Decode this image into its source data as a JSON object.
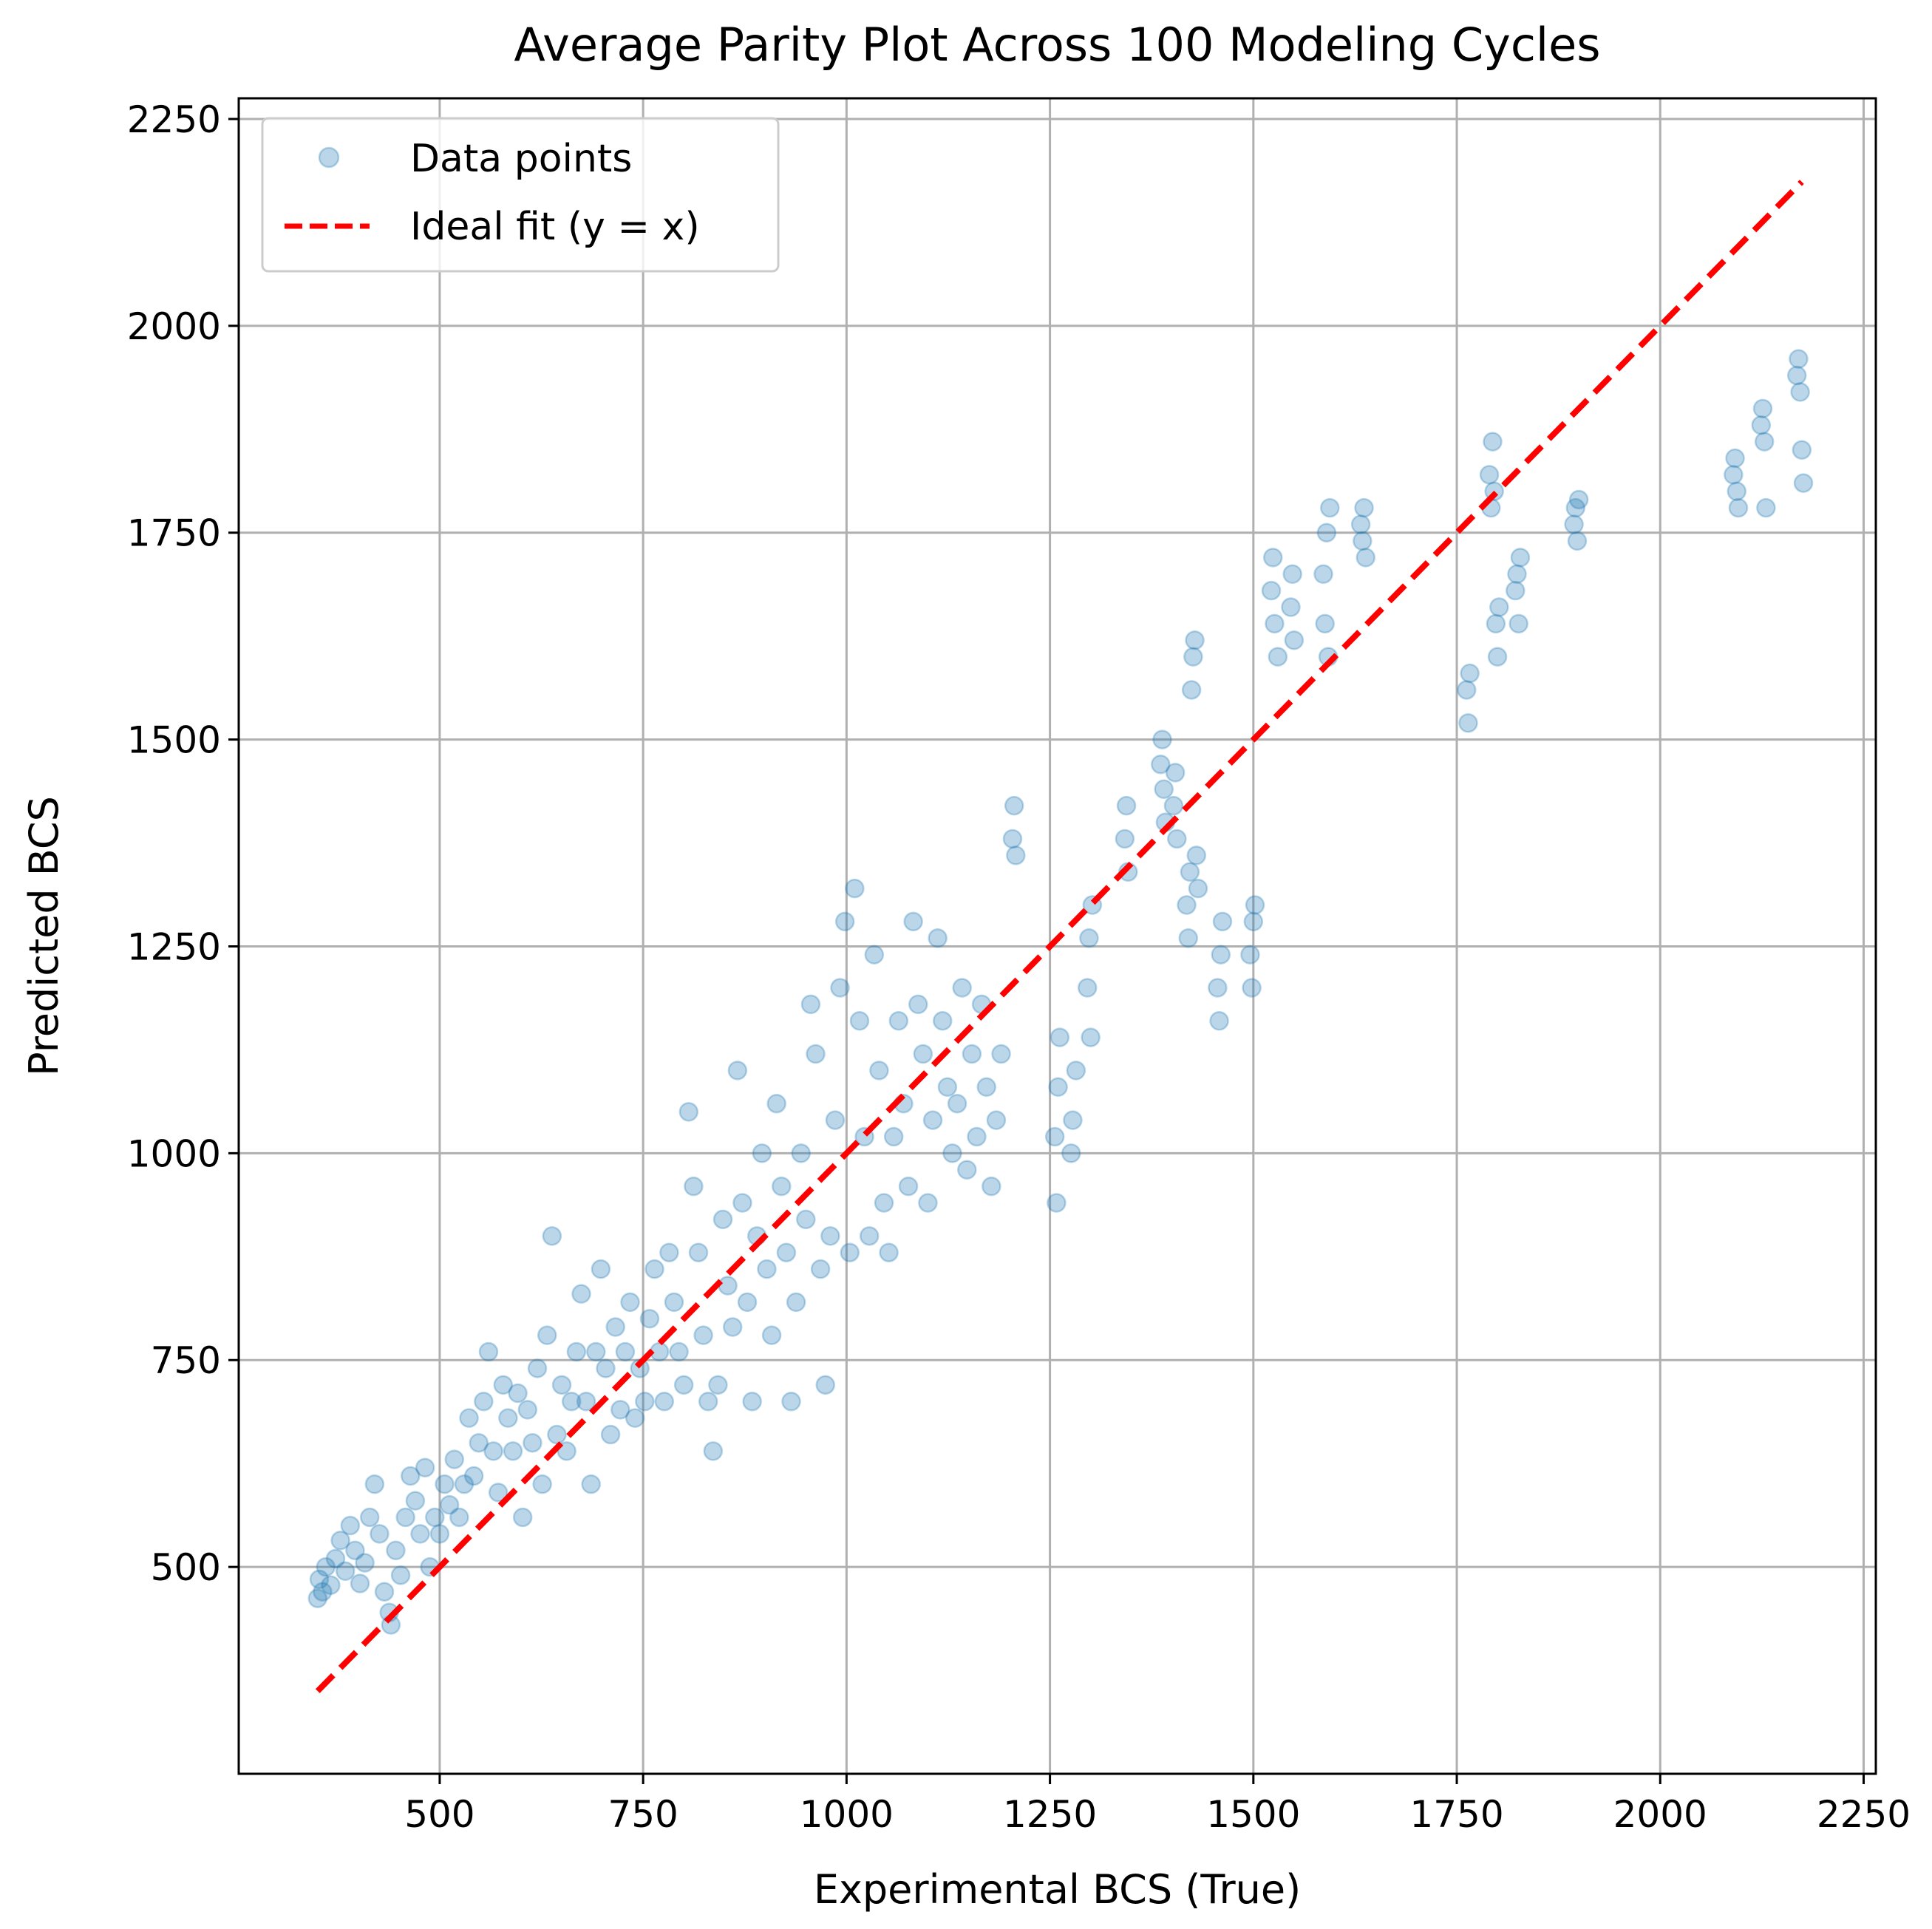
{
  "chart_data": {
    "type": "scatter",
    "title": "Average Parity Plot Across 100 Modeling Cycles",
    "xlabel": "Experimental BCS (True)",
    "ylabel": "Predicted BCS",
    "xlim": [
      253,
      2265
    ],
    "ylim": [
      250,
      2275
    ],
    "xticks": [
      500,
      750,
      1000,
      1250,
      1500,
      1750,
      2000,
      2250
    ],
    "yticks": [
      500,
      750,
      1000,
      1250,
      1500,
      1750,
      2000,
      2250
    ],
    "grid": true,
    "legend_position": "top-left",
    "series": [
      {
        "name": "Data points",
        "kind": "scatter",
        "color": "#1f77b4",
        "alpha": 0.3,
        "points": [
          [
            350,
            462
          ],
          [
            352,
            485
          ],
          [
            356,
            470
          ],
          [
            360,
            500
          ],
          [
            366,
            478
          ],
          [
            372,
            510
          ],
          [
            378,
            532
          ],
          [
            384,
            495
          ],
          [
            390,
            550
          ],
          [
            396,
            520
          ],
          [
            402,
            480
          ],
          [
            408,
            505
          ],
          [
            414,
            560
          ],
          [
            420,
            600
          ],
          [
            426,
            540
          ],
          [
            432,
            470
          ],
          [
            438,
            445
          ],
          [
            440,
            430
          ],
          [
            446,
            520
          ],
          [
            452,
            490
          ],
          [
            458,
            560
          ],
          [
            464,
            610
          ],
          [
            470,
            580
          ],
          [
            476,
            540
          ],
          [
            482,
            620
          ],
          [
            488,
            500
          ],
          [
            494,
            560
          ],
          [
            500,
            540
          ],
          [
            506,
            600
          ],
          [
            512,
            575
          ],
          [
            518,
            630
          ],
          [
            524,
            560
          ],
          [
            530,
            600
          ],
          [
            536,
            680
          ],
          [
            542,
            610
          ],
          [
            548,
            650
          ],
          [
            554,
            700
          ],
          [
            560,
            760
          ],
          [
            566,
            640
          ],
          [
            572,
            590
          ],
          [
            578,
            720
          ],
          [
            584,
            680
          ],
          [
            590,
            640
          ],
          [
            596,
            710
          ],
          [
            602,
            560
          ],
          [
            608,
            690
          ],
          [
            614,
            650
          ],
          [
            620,
            740
          ],
          [
            626,
            600
          ],
          [
            632,
            780
          ],
          [
            638,
            900
          ],
          [
            644,
            660
          ],
          [
            650,
            720
          ],
          [
            656,
            640
          ],
          [
            662,
            700
          ],
          [
            668,
            760
          ],
          [
            674,
            830
          ],
          [
            680,
            700
          ],
          [
            686,
            600
          ],
          [
            692,
            760
          ],
          [
            698,
            860
          ],
          [
            704,
            740
          ],
          [
            710,
            660
          ],
          [
            716,
            790
          ],
          [
            722,
            690
          ],
          [
            728,
            760
          ],
          [
            734,
            820
          ],
          [
            740,
            680
          ],
          [
            746,
            740
          ],
          [
            752,
            700
          ],
          [
            758,
            800
          ],
          [
            764,
            860
          ],
          [
            770,
            760
          ],
          [
            776,
            700
          ],
          [
            782,
            880
          ],
          [
            788,
            820
          ],
          [
            794,
            760
          ],
          [
            800,
            720
          ],
          [
            806,
            1050
          ],
          [
            812,
            960
          ],
          [
            818,
            880
          ],
          [
            824,
            780
          ],
          [
            830,
            700
          ],
          [
            836,
            640
          ],
          [
            842,
            720
          ],
          [
            848,
            920
          ],
          [
            854,
            840
          ],
          [
            860,
            790
          ],
          [
            866,
            1100
          ],
          [
            872,
            940
          ],
          [
            878,
            820
          ],
          [
            884,
            700
          ],
          [
            890,
            900
          ],
          [
            896,
            1000
          ],
          [
            902,
            860
          ],
          [
            908,
            780
          ],
          [
            914,
            1060
          ],
          [
            920,
            960
          ],
          [
            926,
            880
          ],
          [
            932,
            700
          ],
          [
            938,
            820
          ],
          [
            944,
            1000
          ],
          [
            950,
            920
          ],
          [
            956,
            1180
          ],
          [
            962,
            1120
          ],
          [
            968,
            860
          ],
          [
            974,
            720
          ],
          [
            980,
            900
          ],
          [
            986,
            1040
          ],
          [
            992,
            1200
          ],
          [
            998,
            1280
          ],
          [
            1004,
            880
          ],
          [
            1010,
            1320
          ],
          [
            1016,
            1160
          ],
          [
            1022,
            1020
          ],
          [
            1028,
            900
          ],
          [
            1034,
            1240
          ],
          [
            1040,
            1100
          ],
          [
            1046,
            940
          ],
          [
            1052,
            880
          ],
          [
            1058,
            1020
          ],
          [
            1064,
            1160
          ],
          [
            1070,
            1060
          ],
          [
            1076,
            960
          ],
          [
            1082,
            1280
          ],
          [
            1088,
            1180
          ],
          [
            1094,
            1120
          ],
          [
            1100,
            940
          ],
          [
            1106,
            1040
          ],
          [
            1112,
            1260
          ],
          [
            1118,
            1160
          ],
          [
            1124,
            1080
          ],
          [
            1130,
            1000
          ],
          [
            1136,
            1060
          ],
          [
            1142,
            1200
          ],
          [
            1148,
            980
          ],
          [
            1154,
            1120
          ],
          [
            1160,
            1020
          ],
          [
            1166,
            1180
          ],
          [
            1172,
            1080
          ],
          [
            1178,
            960
          ],
          [
            1184,
            1040
          ],
          [
            1190,
            1120
          ],
          [
            1204,
            1380
          ],
          [
            1206,
            1420
          ],
          [
            1208,
            1360
          ],
          [
            1256,
            1020
          ],
          [
            1258,
            940
          ],
          [
            1260,
            1080
          ],
          [
            1262,
            1140
          ],
          [
            1276,
            1000
          ],
          [
            1278,
            1040
          ],
          [
            1282,
            1100
          ],
          [
            1296,
            1200
          ],
          [
            1298,
            1260
          ],
          [
            1300,
            1140
          ],
          [
            1302,
            1300
          ],
          [
            1342,
            1380
          ],
          [
            1344,
            1420
          ],
          [
            1346,
            1340
          ],
          [
            1386,
            1470
          ],
          [
            1388,
            1500
          ],
          [
            1390,
            1440
          ],
          [
            1392,
            1400
          ],
          [
            1402,
            1420
          ],
          [
            1404,
            1460
          ],
          [
            1406,
            1380
          ],
          [
            1418,
            1300
          ],
          [
            1420,
            1260
          ],
          [
            1422,
            1340
          ],
          [
            1424,
            1560
          ],
          [
            1426,
            1600
          ],
          [
            1428,
            1620
          ],
          [
            1430,
            1360
          ],
          [
            1432,
            1320
          ],
          [
            1456,
            1200
          ],
          [
            1458,
            1160
          ],
          [
            1460,
            1240
          ],
          [
            1462,
            1280
          ],
          [
            1496,
            1240
          ],
          [
            1498,
            1200
          ],
          [
            1500,
            1280
          ],
          [
            1502,
            1300
          ],
          [
            1522,
            1680
          ],
          [
            1524,
            1720
          ],
          [
            1526,
            1640
          ],
          [
            1530,
            1600
          ],
          [
            1546,
            1660
          ],
          [
            1548,
            1700
          ],
          [
            1550,
            1620
          ],
          [
            1586,
            1700
          ],
          [
            1588,
            1640
          ],
          [
            1590,
            1750
          ],
          [
            1592,
            1600
          ],
          [
            1594,
            1780
          ],
          [
            1632,
            1760
          ],
          [
            1634,
            1740
          ],
          [
            1636,
            1780
          ],
          [
            1638,
            1720
          ],
          [
            1762,
            1560
          ],
          [
            1764,
            1520
          ],
          [
            1766,
            1580
          ],
          [
            1790,
            1820
          ],
          [
            1792,
            1780
          ],
          [
            1794,
            1860
          ],
          [
            1796,
            1800
          ],
          [
            1798,
            1640
          ],
          [
            1800,
            1600
          ],
          [
            1802,
            1660
          ],
          [
            1822,
            1680
          ],
          [
            1824,
            1700
          ],
          [
            1826,
            1640
          ],
          [
            1828,
            1720
          ],
          [
            1894,
            1760
          ],
          [
            1896,
            1780
          ],
          [
            1898,
            1740
          ],
          [
            1900,
            1790
          ],
          [
            2090,
            1820
          ],
          [
            2092,
            1840
          ],
          [
            2094,
            1800
          ],
          [
            2096,
            1780
          ],
          [
            2124,
            1880
          ],
          [
            2126,
            1900
          ],
          [
            2128,
            1860
          ],
          [
            2130,
            1780
          ],
          [
            2168,
            1940
          ],
          [
            2170,
            1960
          ],
          [
            2172,
            1920
          ],
          [
            2174,
            1850
          ],
          [
            2176,
            1810
          ]
        ]
      },
      {
        "name": "Ideal fit (y = x)",
        "kind": "line",
        "color": "#ff0000",
        "dash": "dashed",
        "x": [
          350,
          2174
        ],
        "y": [
          350,
          2174
        ]
      }
    ]
  }
}
